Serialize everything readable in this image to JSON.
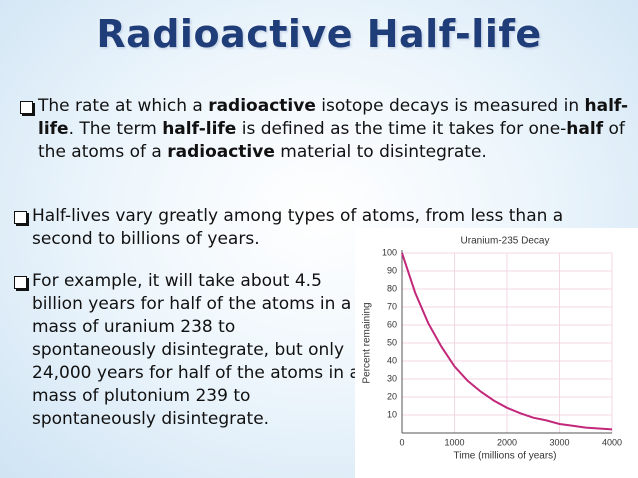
{
  "title": "Radioactive Half-life",
  "bullets": [
    {
      "runs": [
        {
          "text": "The rate at which a ",
          "bold": false
        },
        {
          "text": "radioactive",
          "bold": true
        },
        {
          "text": " isotope decays is measured in ",
          "bold": false
        },
        {
          "text": "half-life",
          "bold": true
        },
        {
          "text": ". The term ",
          "bold": false
        },
        {
          "text": "half-life",
          "bold": true
        },
        {
          "text": " is defined as the time it takes for one-",
          "bold": false
        },
        {
          "text": "half",
          "bold": true
        },
        {
          "text": " of the atoms of a ",
          "bold": false
        },
        {
          "text": "radioactive",
          "bold": true
        },
        {
          "text": " material to disintegrate.",
          "bold": false
        }
      ]
    },
    {
      "runs": [
        {
          "text": "Half-lives vary greatly among types of atoms, from less than a second to billions of years.",
          "bold": false
        }
      ]
    },
    {
      "runs": [
        {
          "text": "For example, it will take about 4.5 billion years for half of the atoms in a mass of uranium 238 to spontaneously disintegrate, but only 24,000 years for half of the atoms in a mass of plutonium 239 to spontaneously disintegrate.",
          "bold": false
        }
      ]
    }
  ],
  "chart_data": {
    "type": "line",
    "title": "Uranium-235 Decay",
    "x_label": "Time (millions of years)",
    "y_label": "Percent remaining",
    "x": [
      0,
      250,
      500,
      750,
      1000,
      1250,
      1500,
      1750,
      2000,
      2250,
      2500,
      2750,
      3000,
      3250,
      3500,
      3750,
      4000
    ],
    "values": [
      100,
      78,
      61,
      48,
      37,
      29,
      23,
      18,
      14,
      11,
      8.5,
      7,
      5,
      4,
      3,
      2.5,
      2
    ],
    "color": "#c2287a",
    "xlim": [
      0,
      4000
    ],
    "xticks": [
      0,
      1000,
      2000,
      3000,
      4000
    ],
    "ylim": [
      0,
      100
    ],
    "yticks": [
      10,
      20,
      30,
      40,
      50,
      60,
      70,
      80,
      90,
      100
    ],
    "grid": true
  }
}
